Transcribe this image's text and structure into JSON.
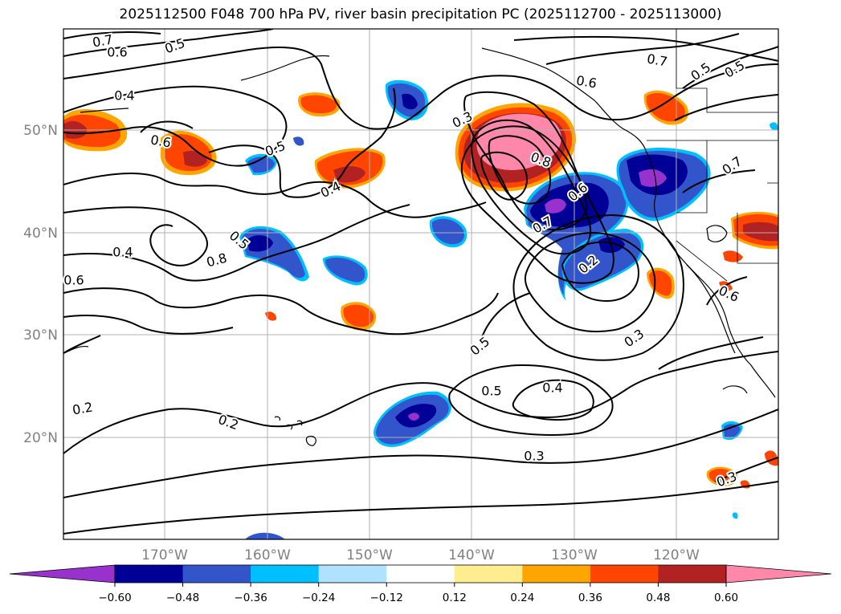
{
  "title": "2025112500 F048 700 hPa PV, river basin precipitation PC (2025112700 - 2025113000)",
  "map": {
    "lat_labels": [
      "50°N",
      "40°N",
      "30°N",
      "20°N"
    ],
    "lon_labels": [
      "170°W",
      "160°W",
      "150°W",
      "140°W",
      "130°W",
      "120°W"
    ],
    "contour_labels": [
      "0.7",
      "0.6",
      "0.5",
      "0.4",
      "0.6",
      "0.5",
      "0.4",
      "0.3",
      "0.8",
      "0.7",
      "0.5",
      "0.4",
      "0.8",
      "0.6",
      "0.7",
      "0.5",
      "0.5",
      "0.6",
      "0.7",
      "0.6",
      "0.5",
      "0.4",
      "0.2",
      "0.3",
      "0.3",
      "0.2",
      "0.2",
      "0.5",
      "0.6",
      "0.3",
      "0.3",
      "0.2"
    ],
    "colors": {
      "land_outline": "#000000",
      "grid": "#b0b0b0",
      "contour": "#000000"
    }
  },
  "colorbar": {
    "tick_labels": [
      "−0.60",
      "−0.48",
      "−0.36",
      "−0.24",
      "−0.12",
      "0.12",
      "0.24",
      "0.36",
      "0.48",
      "0.60"
    ],
    "colors": [
      "#9932cc",
      "#000096",
      "#3355cc",
      "#00bfff",
      "#b0e2ff",
      "#ffffff",
      "#ffed8f",
      "#ffa500",
      "#ff4500",
      "#b22222",
      "#ff88aa"
    ]
  }
}
